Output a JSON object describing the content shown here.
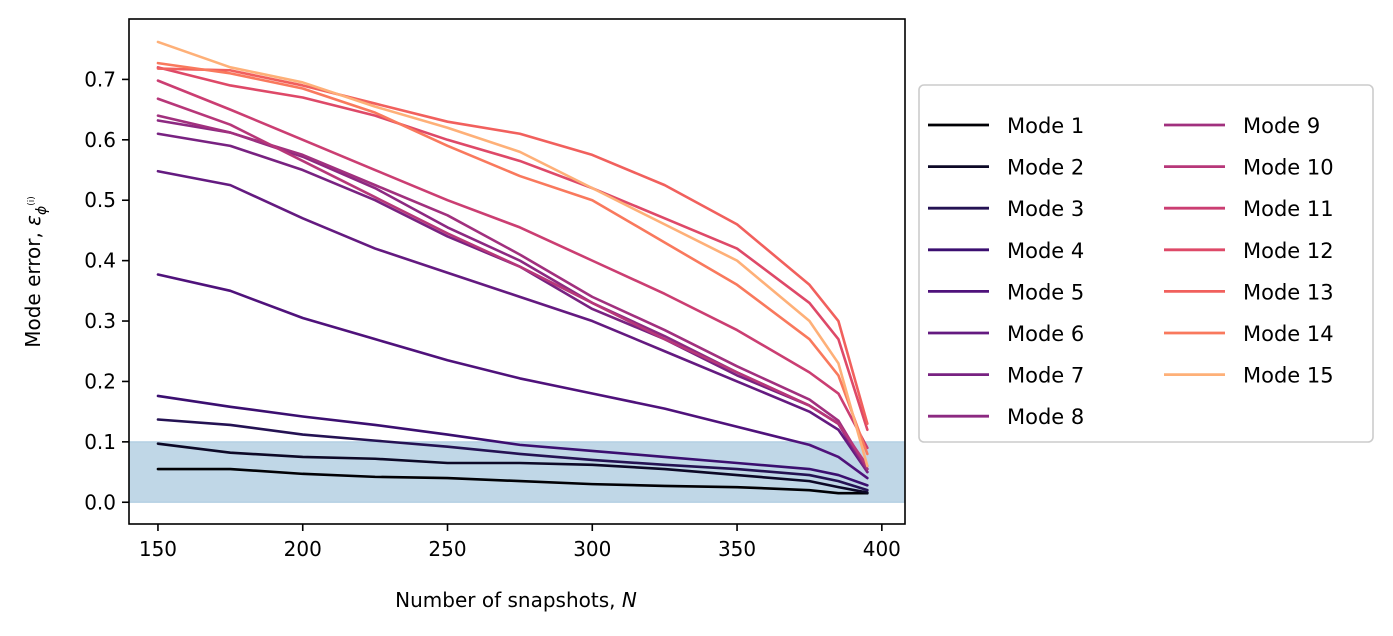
{
  "chart_data": {
    "type": "line",
    "title": "",
    "xlabel": "Number of snapshots, ",
    "xlabel_var": "N",
    "ylabel": "Mode error, ",
    "ylabel_symbol": "ε",
    "ylabel_sub": "ϕ",
    "ylabel_sup": "(i)",
    "xlim": [
      140,
      408
    ],
    "ylim": [
      -0.036,
      0.8
    ],
    "xticks": [
      150,
      200,
      250,
      300,
      350,
      400
    ],
    "yticks": [
      0.0,
      0.1,
      0.2,
      0.3,
      0.4,
      0.5,
      0.6,
      0.7
    ],
    "ytick_labels": [
      "0.0",
      "0.1",
      "0.2",
      "0.3",
      "0.4",
      "0.5",
      "0.6",
      "0.7"
    ],
    "threshold_band": {
      "from": 0.0,
      "to": 0.1,
      "color": "#c0d7e7",
      "edge_color": "#a6c7de"
    },
    "legend": {
      "placement": "outside-right",
      "columns": 2
    },
    "grid": false,
    "x": [
      150,
      175,
      200,
      225,
      250,
      275,
      300,
      325,
      350,
      375,
      385,
      395
    ],
    "series": [
      {
        "name": "Mode 1",
        "color": "#000004",
        "values": [
          0.055,
          0.055,
          0.047,
          0.042,
          0.04,
          0.035,
          0.03,
          0.027,
          0.025,
          0.02,
          0.015,
          0.015
        ]
      },
      {
        "name": "Mode 2",
        "color": "#0c0826",
        "values": [
          0.097,
          0.082,
          0.075,
          0.072,
          0.065,
          0.065,
          0.062,
          0.055,
          0.045,
          0.035,
          0.025,
          0.016
        ]
      },
      {
        "name": "Mode 3",
        "color": "#241253",
        "values": [
          0.137,
          0.128,
          0.112,
          0.102,
          0.092,
          0.08,
          0.07,
          0.062,
          0.055,
          0.045,
          0.035,
          0.02
        ]
      },
      {
        "name": "Mode 4",
        "color": "#3b0f70",
        "values": [
          0.176,
          0.158,
          0.142,
          0.128,
          0.112,
          0.095,
          0.085,
          0.075,
          0.065,
          0.055,
          0.045,
          0.028
        ]
      },
      {
        "name": "Mode 5",
        "color": "#4f127b",
        "values": [
          0.377,
          0.35,
          0.305,
          0.27,
          0.235,
          0.205,
          0.18,
          0.155,
          0.125,
          0.095,
          0.075,
          0.04
        ]
      },
      {
        "name": "Mode 6",
        "color": "#641a80",
        "values": [
          0.548,
          0.525,
          0.47,
          0.42,
          0.38,
          0.34,
          0.3,
          0.25,
          0.2,
          0.15,
          0.12,
          0.05
        ]
      },
      {
        "name": "Mode 7",
        "color": "#782281",
        "values": [
          0.61,
          0.59,
          0.55,
          0.5,
          0.44,
          0.39,
          0.32,
          0.27,
          0.21,
          0.16,
          0.13,
          0.05
        ]
      },
      {
        "name": "Mode 8",
        "color": "#8c2981",
        "values": [
          0.632,
          0.612,
          0.572,
          0.52,
          0.455,
          0.4,
          0.33,
          0.275,
          0.215,
          0.16,
          0.13,
          0.055
        ]
      },
      {
        "name": "Mode 9",
        "color": "#a1307e",
        "values": [
          0.64,
          0.612,
          0.575,
          0.525,
          0.475,
          0.41,
          0.34,
          0.285,
          0.225,
          0.17,
          0.135,
          0.055
        ]
      },
      {
        "name": "Mode 10",
        "color": "#b73779",
        "values": [
          0.668,
          0.625,
          0.565,
          0.505,
          0.445,
          0.39,
          0.33,
          0.27,
          0.215,
          0.16,
          0.13,
          0.06
        ]
      },
      {
        "name": "Mode 11",
        "color": "#cb3e72",
        "values": [
          0.698,
          0.65,
          0.6,
          0.55,
          0.5,
          0.455,
          0.4,
          0.345,
          0.285,
          0.215,
          0.18,
          0.09
        ]
      },
      {
        "name": "Mode 12",
        "color": "#de4968",
        "values": [
          0.72,
          0.69,
          0.67,
          0.64,
          0.6,
          0.565,
          0.52,
          0.47,
          0.42,
          0.33,
          0.27,
          0.12
        ]
      },
      {
        "name": "Mode 13",
        "color": "#f1605d",
        "values": [
          0.718,
          0.715,
          0.69,
          0.66,
          0.63,
          0.61,
          0.575,
          0.525,
          0.46,
          0.36,
          0.3,
          0.13
        ]
      },
      {
        "name": "Mode 14",
        "color": "#f9795d",
        "values": [
          0.727,
          0.71,
          0.685,
          0.645,
          0.59,
          0.54,
          0.5,
          0.43,
          0.36,
          0.27,
          0.21,
          0.08
        ]
      },
      {
        "name": "Mode 15",
        "color": "#feb078",
        "values": [
          0.762,
          0.72,
          0.695,
          0.655,
          0.62,
          0.58,
          0.52,
          0.46,
          0.4,
          0.3,
          0.23,
          0.06
        ]
      }
    ]
  }
}
